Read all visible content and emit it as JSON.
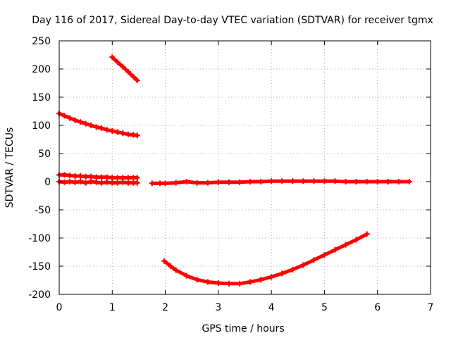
{
  "chart_data": {
    "type": "scatter",
    "title": "Day 116 of 2017, Sidereal Day-to-day VTEC variation (SDTVAR) for receiver tgmx",
    "xlabel": "GPS time / hours",
    "ylabel": "SDTVAR / TECUs",
    "xlim": [
      0,
      7
    ],
    "ylim": [
      -200,
      250
    ],
    "x_ticks": [
      0,
      1,
      2,
      3,
      4,
      5,
      6,
      7
    ],
    "y_ticks": [
      -200,
      -150,
      -100,
      -50,
      0,
      50,
      100,
      150,
      200,
      250
    ],
    "grid": true,
    "legend": "none",
    "marker": "plus",
    "color": "#ff0000",
    "series": [
      {
        "points": [
          [
            1.0,
            221
          ],
          [
            1.1,
            212
          ],
          [
            1.2,
            204
          ],
          [
            1.3,
            195
          ],
          [
            1.4,
            186
          ],
          [
            1.47,
            180
          ]
        ]
      },
      {
        "points": [
          [
            0.0,
            121
          ],
          [
            0.1,
            117
          ],
          [
            0.2,
            113
          ],
          [
            0.3,
            109
          ],
          [
            0.4,
            106
          ],
          [
            0.5,
            103
          ],
          [
            0.6,
            100
          ],
          [
            0.7,
            97
          ],
          [
            0.8,
            95
          ],
          [
            0.9,
            92
          ],
          [
            1.0,
            90
          ],
          [
            1.1,
            88
          ],
          [
            1.2,
            86
          ],
          [
            1.3,
            84
          ],
          [
            1.4,
            83
          ],
          [
            1.47,
            82
          ]
        ]
      },
      {
        "points": [
          [
            0.0,
            12
          ],
          [
            0.1,
            12
          ],
          [
            0.2,
            11
          ],
          [
            0.3,
            10
          ],
          [
            0.4,
            10
          ],
          [
            0.5,
            9
          ],
          [
            0.6,
            9
          ],
          [
            0.7,
            8
          ],
          [
            0.8,
            8
          ],
          [
            0.9,
            8
          ],
          [
            1.0,
            7
          ],
          [
            1.1,
            7
          ],
          [
            1.2,
            7
          ],
          [
            1.3,
            7
          ],
          [
            1.4,
            7
          ],
          [
            1.47,
            7
          ]
        ]
      },
      {
        "points": [
          [
            0.0,
            0
          ],
          [
            0.1,
            -1
          ],
          [
            0.2,
            0
          ],
          [
            0.3,
            -1
          ],
          [
            0.4,
            0
          ],
          [
            0.5,
            -2
          ],
          [
            0.6,
            0
          ],
          [
            0.7,
            -1
          ],
          [
            0.8,
            -2
          ],
          [
            0.9,
            -1
          ],
          [
            1.0,
            -2
          ],
          [
            1.1,
            -2
          ],
          [
            1.2,
            -1
          ],
          [
            1.3,
            -2
          ],
          [
            1.4,
            -2
          ],
          [
            1.47,
            -2
          ]
        ]
      },
      {
        "points": [
          [
            1.75,
            -3
          ],
          [
            1.9,
            -3
          ],
          [
            2.0,
            -3
          ],
          [
            2.2,
            -2
          ],
          [
            2.4,
            0
          ],
          [
            2.6,
            -2
          ],
          [
            2.8,
            -2
          ],
          [
            3.0,
            -1
          ],
          [
            3.2,
            -1
          ],
          [
            3.4,
            -1
          ],
          [
            3.6,
            0
          ],
          [
            3.8,
            0
          ],
          [
            4.0,
            1
          ],
          [
            4.2,
            1
          ],
          [
            4.4,
            1
          ],
          [
            4.6,
            1
          ],
          [
            4.8,
            1
          ],
          [
            5.0,
            1
          ],
          [
            5.2,
            1
          ],
          [
            5.4,
            0
          ],
          [
            5.6,
            0
          ],
          [
            5.8,
            0
          ],
          [
            6.0,
            0
          ],
          [
            6.2,
            0
          ],
          [
            6.4,
            0
          ],
          [
            6.6,
            0
          ]
        ]
      },
      {
        "points": [
          [
            1.98,
            -141
          ],
          [
            2.1,
            -150
          ],
          [
            2.2,
            -157
          ],
          [
            2.4,
            -167
          ],
          [
            2.6,
            -174
          ],
          [
            2.8,
            -178
          ],
          [
            3.0,
            -180
          ],
          [
            3.2,
            -181
          ],
          [
            3.4,
            -181
          ],
          [
            3.6,
            -178
          ],
          [
            3.8,
            -174
          ],
          [
            4.0,
            -169
          ],
          [
            4.2,
            -163
          ],
          [
            4.4,
            -156
          ],
          [
            4.6,
            -148
          ],
          [
            4.8,
            -139
          ],
          [
            5.0,
            -130
          ],
          [
            5.2,
            -121
          ],
          [
            5.4,
            -112
          ],
          [
            5.6,
            -103
          ],
          [
            5.8,
            -93
          ]
        ]
      }
    ]
  }
}
